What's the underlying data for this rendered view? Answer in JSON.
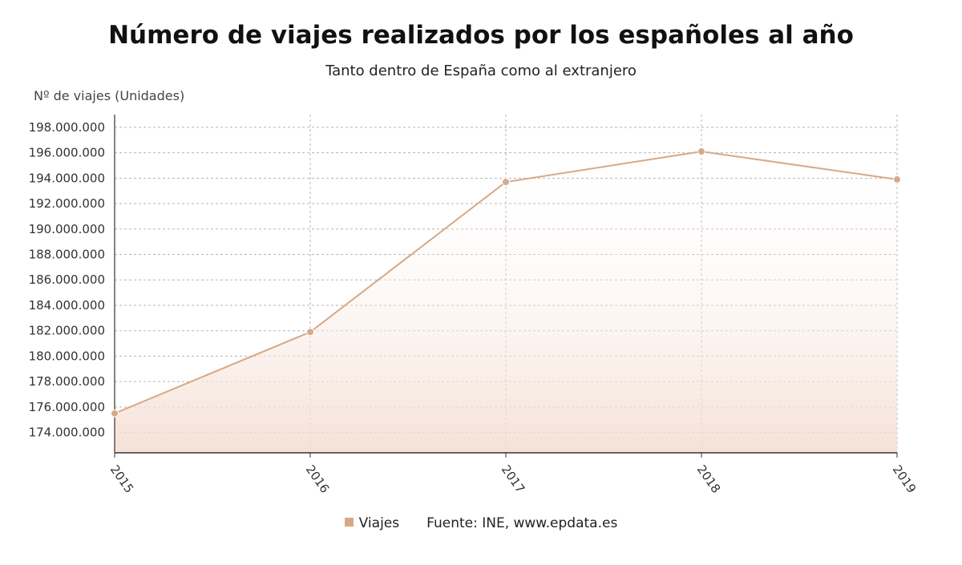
{
  "chart_data": {
    "type": "area",
    "title": "Número de viajes realizados por los españoles al año",
    "subtitle": "Tanto dentro de España como al extranjero",
    "ylabel": "Nº de viajes (Unidades)",
    "xlabel": "",
    "categories": [
      "2015",
      "2016",
      "2017",
      "2018",
      "2019"
    ],
    "series": [
      {
        "name": "Viajes",
        "values": [
          175500000,
          181900000,
          193700000,
          196100000,
          193900000
        ]
      }
    ],
    "ylim": [
      172400000,
      199000000
    ],
    "yticks": [
      174000000,
      176000000,
      178000000,
      180000000,
      182000000,
      184000000,
      186000000,
      188000000,
      190000000,
      192000000,
      194000000,
      196000000,
      198000000
    ],
    "ytick_labels": [
      "174.000.000",
      "176.000.000",
      "178.000.000",
      "180.000.000",
      "182.000.000",
      "184.000.000",
      "186.000.000",
      "188.000.000",
      "190.000.000",
      "192.000.000",
      "194.000.000",
      "196.000.000",
      "198.000.000"
    ],
    "grid": true,
    "legend_position": "bottom",
    "source": "Fuente: INE, www.epdata.es",
    "colors": {
      "line": "#d7a986",
      "fill": "#f7e7dd",
      "grid": "#b5b5b5",
      "axis": "#333333"
    }
  }
}
